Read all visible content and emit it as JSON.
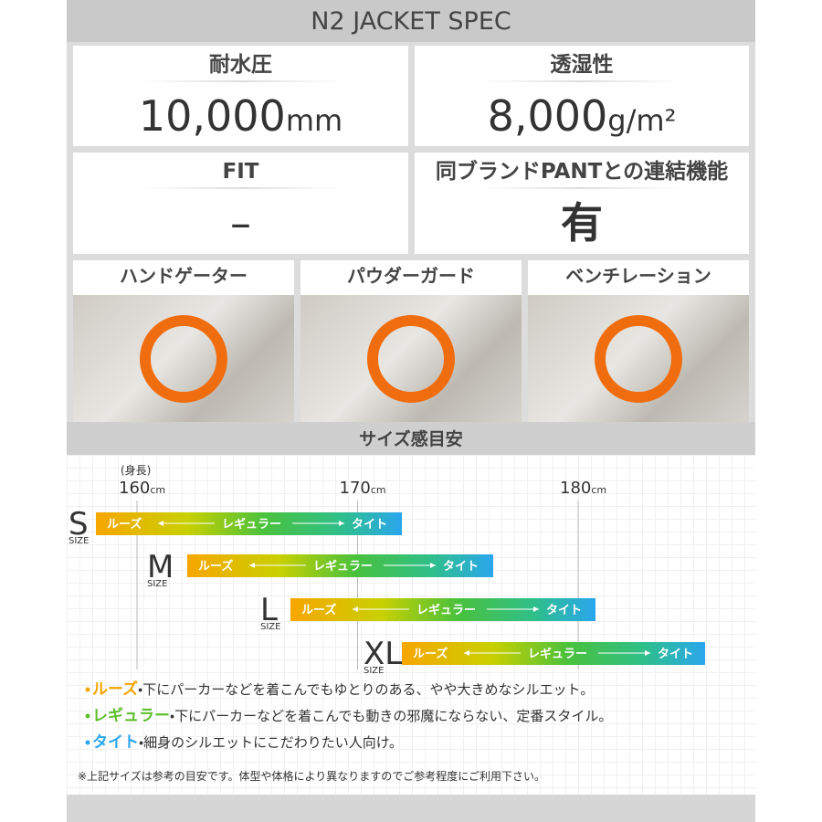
{
  "header": {
    "title": "N2 JACKET SPEC"
  },
  "specs": [
    {
      "label": "耐水圧",
      "value": "10,000",
      "unit": "mm"
    },
    {
      "label": "透湿性",
      "value": "8,000",
      "unit": "g/m²"
    },
    {
      "label": "FIT",
      "value": "–"
    },
    {
      "label": "同ブランドPANTとの連結機能",
      "value": "有"
    }
  ],
  "features": [
    {
      "label": "ハンドゲーター"
    },
    {
      "label": "パウダーガード"
    },
    {
      "label": "ベンチレーション"
    }
  ],
  "size_chart": {
    "title": "サイズ感目安",
    "axis_label": "(身長)",
    "unit": "cm",
    "ticks": [
      160,
      170,
      180
    ],
    "sizes": [
      {
        "name": "S",
        "sub": "SIZE",
        "loose": "ルーズ",
        "regular": "レギュラー",
        "tight": "タイト"
      },
      {
        "name": "M",
        "sub": "SIZE",
        "loose": "ルーズ",
        "regular": "レギュラー",
        "tight": "タイト"
      },
      {
        "name": "L",
        "sub": "SIZE",
        "loose": "ルーズ",
        "regular": "レギュラー",
        "tight": "タイト"
      },
      {
        "name": "XL",
        "sub": "SIZE",
        "loose": "ルーズ",
        "regular": "レギュラー",
        "tight": "タイト"
      }
    ]
  },
  "notes": [
    {
      "term": "ルーズ",
      "text": "・下にパーカーなどを着こんでもゆとりのある、やや大きめなシルエット。"
    },
    {
      "term": "レギュラー",
      "text": "・下にパーカーなどを着こんでも動きの邪魔にならない、定番スタイル。"
    },
    {
      "term": "タイト",
      "text": "・細身のシルエットにこだわりたい人向け。"
    }
  ],
  "footnote": "※上記サイズは参考の目安です。体型や体格により異なりますのでご参考程度にご利用下さい。"
}
